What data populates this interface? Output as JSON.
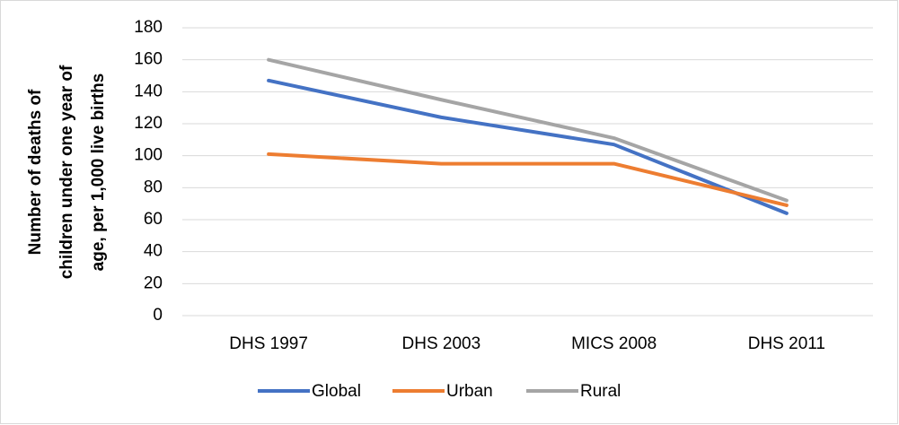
{
  "chart_data": {
    "type": "line",
    "ylabel": [
      "Number of deaths of",
      "children under one year of",
      "age, per 1,000 live births"
    ],
    "categories": [
      "DHS 1997",
      "DHS 2003",
      "MICS 2008",
      "DHS 2011"
    ],
    "series": [
      {
        "name": "Global",
        "color": "#4472c4",
        "values": [
          147,
          124,
          107,
          64
        ]
      },
      {
        "name": "Urban",
        "color": "#ed7d31",
        "values": [
          101,
          95,
          95,
          69
        ]
      },
      {
        "name": "Rural",
        "color": "#a5a5a5",
        "values": [
          160,
          135,
          111,
          72
        ]
      }
    ],
    "ylim": [
      0,
      180
    ],
    "yticks": [
      0,
      20,
      40,
      60,
      80,
      100,
      120,
      140,
      160,
      180
    ],
    "grid": true,
    "legend": "bottom"
  }
}
